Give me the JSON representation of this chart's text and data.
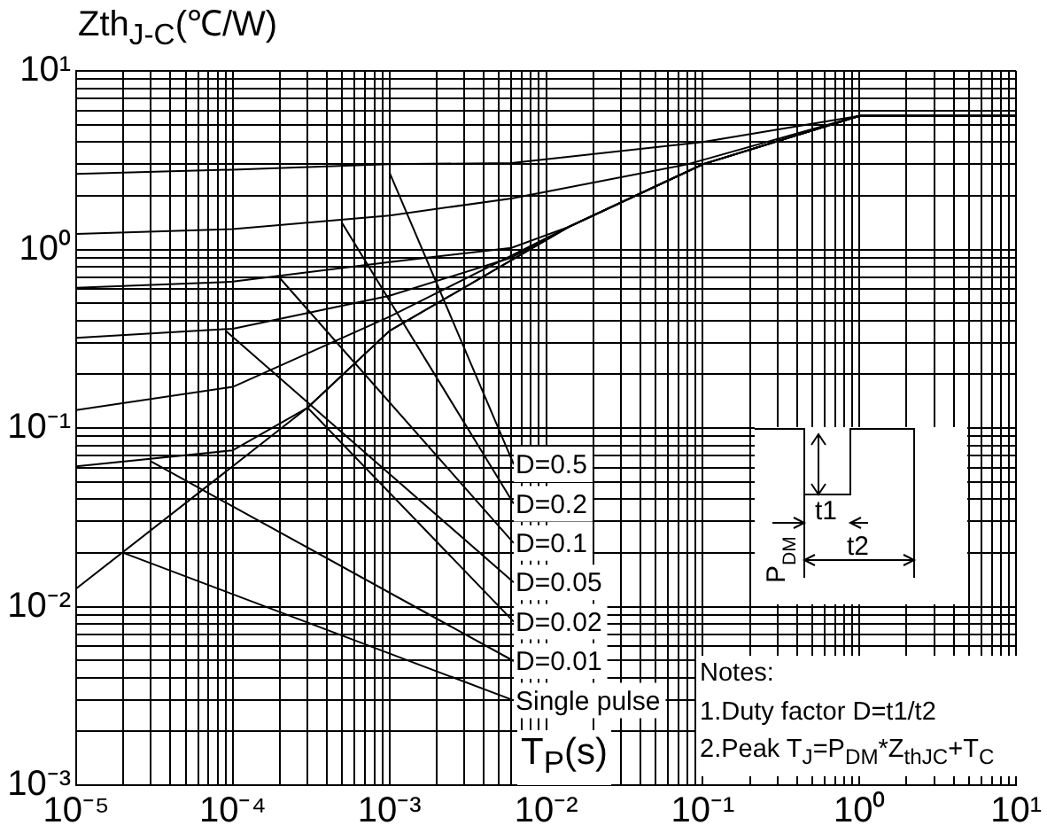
{
  "chart_data": {
    "type": "line",
    "ylabel": "Zth$_{J-C}$(℃/W)",
    "xlabel": "T$_{P}$(s)",
    "xlim": [
      1e-05,
      10
    ],
    "ylim": [
      0.001,
      10
    ],
    "log": "xy",
    "grid": true,
    "legend": false,
    "marker": "none",
    "line_style": "solid",
    "xticks": [
      {
        "value": 1e-05,
        "label": "10⁻⁵"
      },
      {
        "value": 2e-05,
        "label": null
      },
      {
        "value": 3e-05,
        "label": null
      },
      {
        "value": 4e-05,
        "label": null
      },
      {
        "value": 5e-05,
        "label": null
      },
      {
        "value": 6e-05,
        "label": null
      },
      {
        "value": 7e-05,
        "label": null
      },
      {
        "value": 8e-05,
        "label": null
      },
      {
        "value": 9e-05,
        "label": null
      },
      {
        "value": 0.0001,
        "label": "10⁻⁴"
      },
      {
        "value": 0.0002,
        "label": null
      },
      {
        "value": 0.0003,
        "label": null
      },
      {
        "value": 0.0004,
        "label": null
      },
      {
        "value": 0.0005,
        "label": null
      },
      {
        "value": 0.0006,
        "label": null
      },
      {
        "value": 0.0007,
        "label": null
      },
      {
        "value": 0.0008,
        "label": null
      },
      {
        "value": 0.0009,
        "label": null
      },
      {
        "value": 0.001,
        "label": "10⁻³"
      },
      {
        "value": 0.002,
        "label": null
      },
      {
        "value": 0.003,
        "label": null
      },
      {
        "value": 0.004,
        "label": null
      },
      {
        "value": 0.005,
        "label": null
      },
      {
        "value": 0.006,
        "label": null
      },
      {
        "value": 0.007,
        "label": null
      },
      {
        "value": 0.008,
        "label": null
      },
      {
        "value": 0.009,
        "label": null
      },
      {
        "value": 0.01,
        "label": "10⁻²"
      },
      {
        "value": 0.02,
        "label": null
      },
      {
        "value": 0.03,
        "label": null
      },
      {
        "value": 0.04,
        "label": null
      },
      {
        "value": 0.05,
        "label": null
      },
      {
        "value": 0.06,
        "label": null
      },
      {
        "value": 0.07,
        "label": null
      },
      {
        "value": 0.08,
        "label": null
      },
      {
        "value": 0.09,
        "label": null
      },
      {
        "value": 0.1,
        "label": "10⁻¹"
      },
      {
        "value": 0.2,
        "label": null
      },
      {
        "value": 0.3,
        "label": null
      },
      {
        "value": 0.4,
        "label": null
      },
      {
        "value": 0.5,
        "label": null
      },
      {
        "value": 0.6,
        "label": null
      },
      {
        "value": 0.7,
        "label": null
      },
      {
        "value": 0.8,
        "label": null
      },
      {
        "value": 0.9,
        "label": null
      },
      {
        "value": 1,
        "label": "10⁰"
      },
      {
        "value": 2,
        "label": null
      },
      {
        "value": 3,
        "label": null
      },
      {
        "value": 4,
        "label": null
      },
      {
        "value": 5,
        "label": null
      },
      {
        "value": 6,
        "label": null
      },
      {
        "value": 7,
        "label": null
      },
      {
        "value": 8,
        "label": null
      },
      {
        "value": 9,
        "label": null
      },
      {
        "value": 10,
        "label": "10¹"
      }
    ],
    "yticks": [
      {
        "value": 0.001,
        "label": "10⁻³"
      },
      {
        "value": 0.002,
        "label": null
      },
      {
        "value": 0.003,
        "label": null
      },
      {
        "value": 0.004,
        "label": null
      },
      {
        "value": 0.005,
        "label": null
      },
      {
        "value": 0.006,
        "label": null
      },
      {
        "value": 0.007,
        "label": null
      },
      {
        "value": 0.008,
        "label": null
      },
      {
        "value": 0.009,
        "label": null
      },
      {
        "value": 0.01,
        "label": "10⁻²"
      },
      {
        "value": 0.02,
        "label": null
      },
      {
        "value": 0.03,
        "label": null
      },
      {
        "value": 0.04,
        "label": null
      },
      {
        "value": 0.05,
        "label": null
      },
      {
        "value": 0.06,
        "label": null
      },
      {
        "value": 0.07,
        "label": null
      },
      {
        "value": 0.08,
        "label": null
      },
      {
        "value": 0.09,
        "label": null
      },
      {
        "value": 0.1,
        "label": "10⁻¹"
      },
      {
        "value": 0.2,
        "label": null
      },
      {
        "value": 0.3,
        "label": null
      },
      {
        "value": 0.4,
        "label": null
      },
      {
        "value": 0.5,
        "label": null
      },
      {
        "value": 0.6,
        "label": null
      },
      {
        "value": 0.7,
        "label": null
      },
      {
        "value": 0.8,
        "label": null
      },
      {
        "value": 0.9,
        "label": null
      },
      {
        "value": 1,
        "label": "10⁰"
      },
      {
        "value": 2,
        "label": null
      },
      {
        "value": 3,
        "label": null
      },
      {
        "value": 4,
        "label": null
      },
      {
        "value": 5,
        "label": null
      },
      {
        "value": 6,
        "label": null
      },
      {
        "value": 7,
        "label": null
      },
      {
        "value": 8,
        "label": null
      },
      {
        "value": 9,
        "label": null
      },
      {
        "value": 10,
        "label": "10¹"
      }
    ],
    "series": [
      {
        "color": "#000000",
        "x": [
          1e-05,
          0.0001,
          0.001,
          0.006,
          0.1,
          1,
          10
        ],
        "values": [
          2.65,
          2.8,
          3.0,
          3.05,
          4.0,
          5.6,
          5.6
        ]
      },
      {
        "color": "#000000",
        "x": [
          1e-05,
          0.0001,
          0.001,
          0.006,
          0.08,
          1,
          10
        ],
        "values": [
          1.22,
          1.3,
          1.55,
          1.93,
          3.0,
          5.6,
          5.6
        ]
      },
      {
        "color": "#000000",
        "x": [
          1e-05,
          0.0001,
          0.001,
          0.006,
          0.014,
          0.1,
          1,
          10
        ],
        "values": [
          0.61,
          0.66,
          0.85,
          1.02,
          1.34,
          3.0,
          5.6,
          5.6
        ]
      },
      {
        "color": "#000000",
        "x": [
          1e-05,
          0.0001,
          0.001,
          0.006,
          0.014,
          0.1,
          1,
          10
        ],
        "values": [
          0.32,
          0.36,
          0.55,
          0.9,
          1.34,
          3.0,
          5.6,
          5.6
        ]
      },
      {
        "color": "#000000",
        "x": [
          1e-05,
          0.0001,
          0.001,
          0.014,
          0.1,
          1,
          10
        ],
        "values": [
          0.126,
          0.17,
          0.42,
          1.34,
          3.0,
          5.6,
          5.6
        ]
      },
      {
        "color": "#000000",
        "x": [
          1e-05,
          0.0001,
          0.0003,
          0.001,
          0.014,
          0.1,
          1,
          10
        ],
        "values": [
          0.061,
          0.075,
          0.13,
          0.35,
          1.34,
          3.0,
          5.6,
          5.6
        ]
      },
      {
        "color": "#000000",
        "x": [
          1e-05,
          0.0003,
          0.001,
          0.014,
          0.1,
          1,
          10
        ],
        "values": [
          0.0126,
          0.13,
          0.35,
          1.34,
          3.0,
          5.6,
          5.6
        ]
      }
    ],
    "annotations": [
      {
        "text": "D=0.5",
        "x": 0.001,
        "y": 2.7
      },
      {
        "text": "D=0.2",
        "x": 0.0005,
        "y": 1.4
      },
      {
        "text": "D=0.1",
        "x": 0.0002,
        "y": 0.69
      },
      {
        "text": "D=0.05",
        "x": 9e-05,
        "y": 0.35
      },
      {
        "text": "D=0.02",
        "x": 0.0003,
        "y": 0.13
      },
      {
        "text": "D=0.01",
        "x": 3e-05,
        "y": 0.065
      },
      {
        "text": "Single pulse",
        "x": 2e-05,
        "y": 0.02
      },
      "Notes:",
      "1.Duty factor D=t1/t2",
      "2.Peak T$_{J}$=P$_{DM}$*Z$_{thJC}$+T$_{C}$",
      "P$_{DM}$",
      "t1",
      "t2"
    ]
  }
}
